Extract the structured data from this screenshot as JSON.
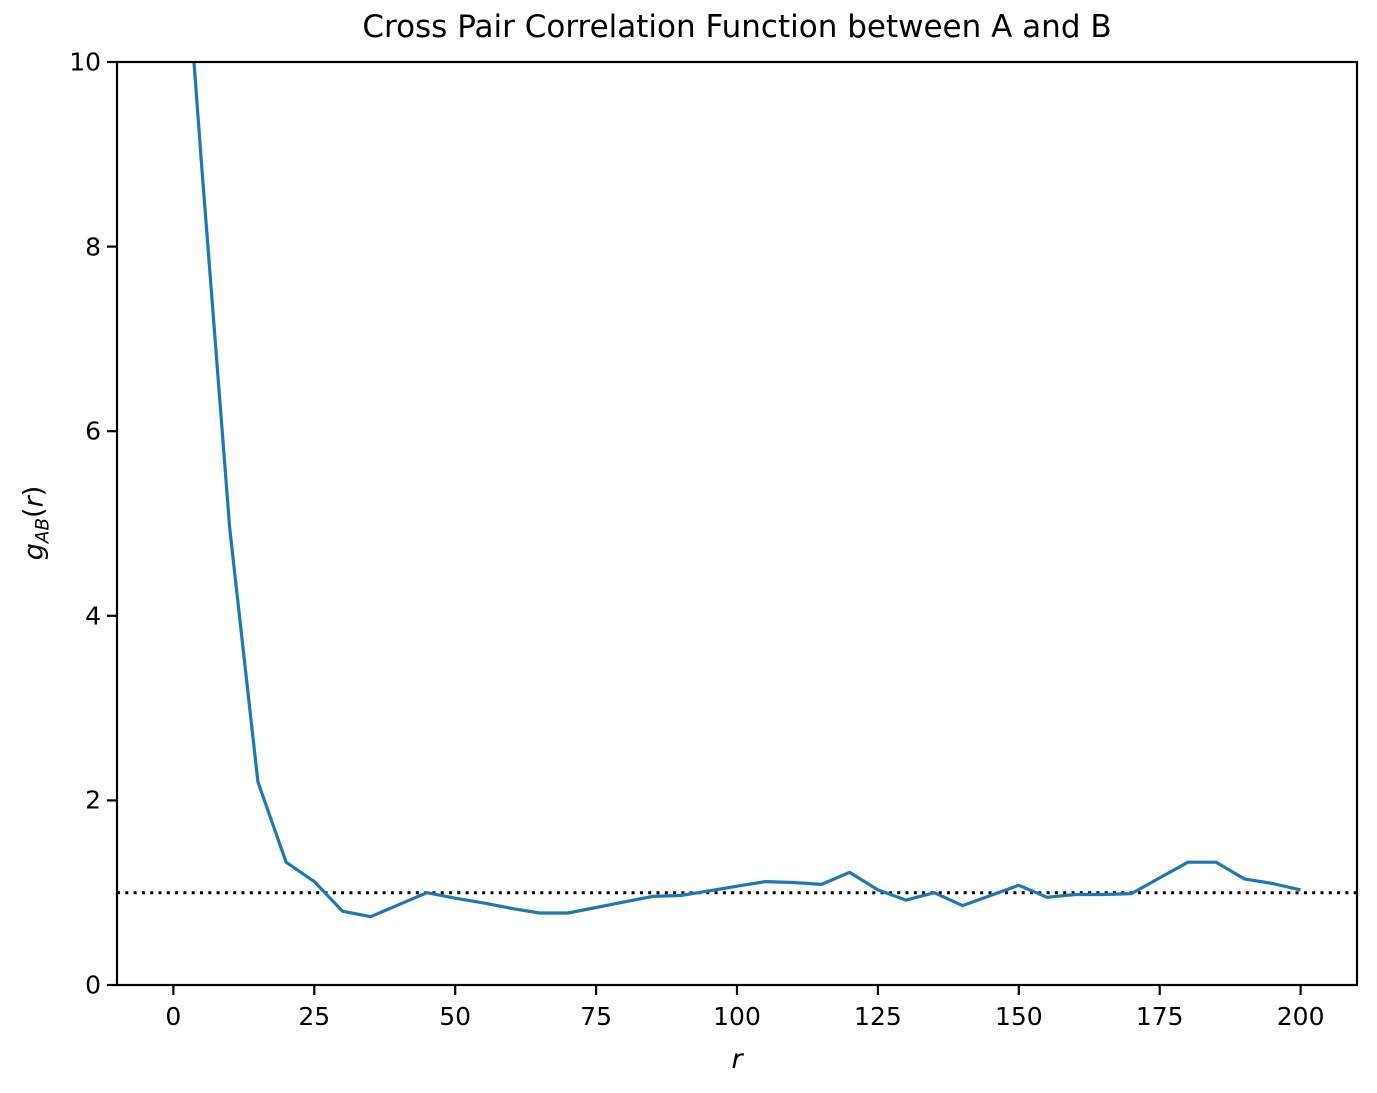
{
  "chart_data": {
    "type": "line",
    "title": "Cross Pair Correlation Function between A and B",
    "xlabel": "r",
    "ylabel": "g_AB(r)",
    "ylabel_parts": {
      "base": "g",
      "subscript": "AB",
      "open": "(",
      "arg": "r",
      "close": ")"
    },
    "xlim": [
      -10,
      210
    ],
    "ylim": [
      0,
      10
    ],
    "x_ticks": [
      0,
      25,
      50,
      75,
      100,
      125,
      150,
      175,
      200
    ],
    "y_ticks": [
      0,
      2,
      4,
      6,
      8,
      10
    ],
    "grid": false,
    "legend": "none",
    "x": [
      0,
      5,
      10,
      15,
      20,
      25,
      30,
      35,
      40,
      45,
      50,
      55,
      60,
      65,
      70,
      75,
      80,
      85,
      90,
      95,
      100,
      105,
      110,
      115,
      120,
      125,
      130,
      135,
      140,
      145,
      150,
      155,
      160,
      165,
      170,
      175,
      180,
      185,
      190,
      195,
      200
    ],
    "series": [
      {
        "name": "g_AB(r)",
        "color": "#1f77b4",
        "clipped_at_top": true,
        "values": [
          13.0,
          8.9,
          4.95,
          2.2,
          1.33,
          1.12,
          0.8,
          0.74,
          0.87,
          1.0,
          0.94,
          0.89,
          0.83,
          0.78,
          0.78,
          0.84,
          0.9,
          0.96,
          0.97,
          1.02,
          1.07,
          1.12,
          1.11,
          1.09,
          1.22,
          1.03,
          0.92,
          1.0,
          0.86,
          0.97,
          1.08,
          0.95,
          0.98,
          0.98,
          0.99,
          1.16,
          1.33,
          1.33,
          1.15,
          1.1,
          1.03
        ]
      }
    ],
    "reference_line": {
      "y": 1.0,
      "style": "dotted",
      "color": "#000000"
    }
  },
  "colors": {
    "line": "#1f77b4",
    "axes": "#000000",
    "background": "#ffffff"
  }
}
